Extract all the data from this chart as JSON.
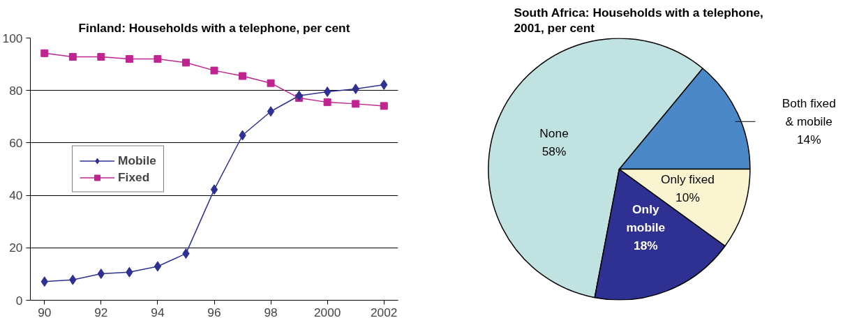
{
  "chart_data": [
    {
      "type": "line",
      "title": "Finland: Households with a telephone, per cent",
      "x": [
        1990,
        1991,
        1992,
        1993,
        1994,
        1995,
        1996,
        1997,
        1998,
        1999,
        2000,
        2001,
        2002
      ],
      "series": [
        {
          "name": "Mobile",
          "color": "#2e3192",
          "marker": "diamond",
          "values": [
            7.1,
            7.8,
            10.1,
            10.7,
            12.9,
            17.8,
            42.2,
            62.9,
            72.0,
            78.0,
            79.5,
            80.6,
            82.2
          ]
        },
        {
          "name": "Fixed",
          "color": "#c0248f",
          "marker": "square",
          "values": [
            94.2,
            92.8,
            92.8,
            92.0,
            92.0,
            90.6,
            87.6,
            85.5,
            82.8,
            77.1,
            75.5,
            74.9,
            74.1
          ]
        }
      ],
      "xlim": [
        1989.5,
        2002.5
      ],
      "xticks": [
        {
          "value": 1990,
          "label": "90"
        },
        {
          "value": 1992,
          "label": "92"
        },
        {
          "value": 1994,
          "label": "94"
        },
        {
          "value": 1996,
          "label": "96"
        },
        {
          "value": 1998,
          "label": "98"
        },
        2000,
        2002
      ],
      "ylim": [
        0,
        100
      ],
      "yticks": [
        0,
        20,
        40,
        60,
        80,
        100
      ],
      "grid": "y",
      "legend": "center left"
    },
    {
      "type": "pie",
      "title": "South Africa: Households with a telephone,\n2001, per cent",
      "categories": [
        "Both fixed\n& mobile",
        "None",
        "Only\nmobile",
        "Only fixed"
      ],
      "values": [
        14,
        58,
        18,
        10
      ],
      "colors": [
        "#4a88c8",
        "#c0e2e0",
        "#2e3192",
        "#faf5d0"
      ],
      "value_labels": [
        "14%",
        "58%",
        "18%",
        "10%"
      ]
    }
  ]
}
